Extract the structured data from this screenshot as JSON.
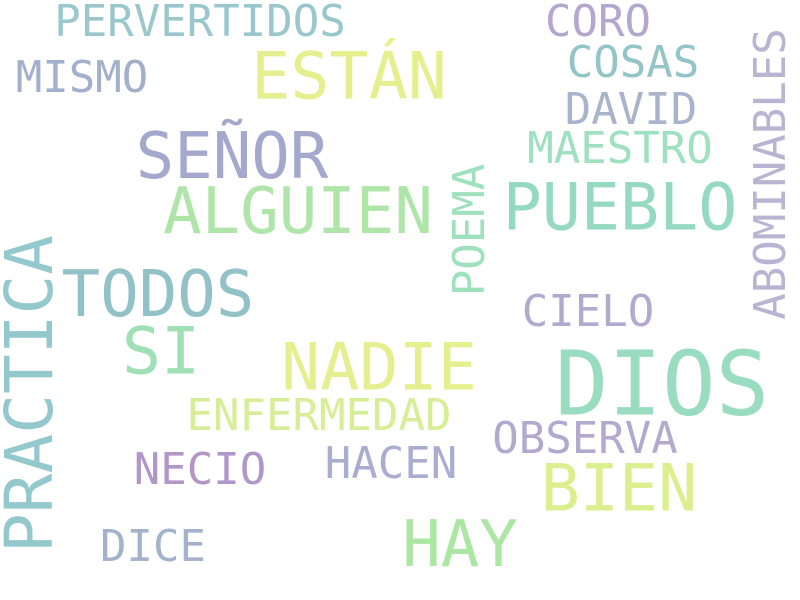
{
  "words": [
    {
      "key": "pervertidos",
      "text": "PERVERTIDOS",
      "color": "#99c7cc"
    },
    {
      "key": "coro",
      "text": "CORO",
      "color": "#b4a6cf"
    },
    {
      "key": "mismo",
      "text": "MISMO",
      "color": "#a3b0cc"
    },
    {
      "key": "estan",
      "text": "ESTÁN",
      "color": "#e6ef8e"
    },
    {
      "key": "cosas",
      "text": "COSAS",
      "color": "#93c5c8"
    },
    {
      "key": "david",
      "text": "DAVID",
      "color": "#a9b3cb"
    },
    {
      "key": "abominables",
      "text": "ABOMINABLES",
      "color": "#b8b4d2"
    },
    {
      "key": "senor",
      "text": "SEÑOR",
      "color": "#a3a8cc"
    },
    {
      "key": "maestro",
      "text": "MAESTRO",
      "color": "#9ee0c0"
    },
    {
      "key": "alguien",
      "text": "ALGUIEN",
      "color": "#afe5a9"
    },
    {
      "key": "pueblo",
      "text": "PUEBLO",
      "color": "#95d9c0"
    },
    {
      "key": "poema",
      "text": "POEMA",
      "color": "#9fe0bd"
    },
    {
      "key": "practica",
      "text": "PRACTICA",
      "color": "#93c8cc"
    },
    {
      "key": "todos",
      "text": "TODOS",
      "color": "#93c1c8"
    },
    {
      "key": "cielo",
      "text": "CIELO",
      "color": "#b3a9cf"
    },
    {
      "key": "si",
      "text": "SI",
      "color": "#a0e0b6"
    },
    {
      "key": "nadie",
      "text": "NADIE",
      "color": "#e5ef90"
    },
    {
      "key": "dios",
      "text": "DIOS",
      "color": "#99dcc0"
    },
    {
      "key": "enfermedad",
      "text": "ENFERMEDAD",
      "color": "#d6ee95"
    },
    {
      "key": "observa",
      "text": "OBSERVA",
      "color": "#b3a9cf"
    },
    {
      "key": "hacen",
      "text": "HACEN",
      "color": "#a9aed0"
    },
    {
      "key": "necio",
      "text": "NECIO",
      "color": "#b197c9"
    },
    {
      "key": "bien",
      "text": "BIEN",
      "color": "#dbef8f"
    },
    {
      "key": "hay",
      "text": "HAY",
      "color": "#abe6a2"
    },
    {
      "key": "dice",
      "text": "DICE",
      "color": "#a3b3cc"
    }
  ]
}
